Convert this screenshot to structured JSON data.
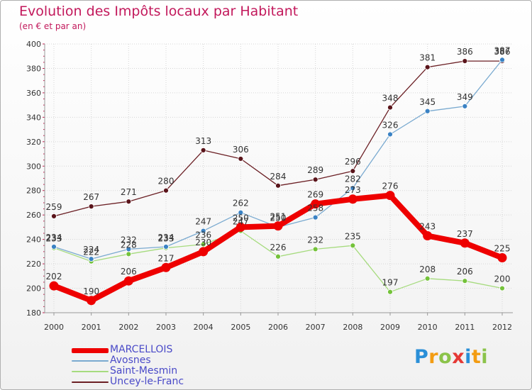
{
  "header": {
    "title": "Evolution des Impôts locaux par Habitant",
    "subtitle": "(en € et par an)"
  },
  "logo": {
    "letters": [
      "P",
      "r",
      "o",
      "x",
      "i",
      "t",
      "i"
    ],
    "colors": [
      "#2a8fd8",
      "#f39c12",
      "#8bc34a",
      "#e53935",
      "#2a8fd8",
      "#f39c12",
      "#8bc34a"
    ]
  },
  "chart_data": {
    "type": "line",
    "title": "Evolution des Impôts locaux par Habitant",
    "subtitle": "(en € et par an)",
    "xlabel": "",
    "ylabel": "",
    "x": [
      "2000",
      "2001",
      "2002",
      "2003",
      "2004",
      "2005",
      "2006",
      "2007",
      "2008",
      "2009",
      "2010",
      "2011",
      "2012"
    ],
    "ylim": [
      180,
      400
    ],
    "yticks": [
      180,
      200,
      220,
      240,
      260,
      280,
      300,
      320,
      340,
      360,
      380,
      400
    ],
    "grid": true,
    "legend_position": "bottom-left",
    "series": [
      {
        "name": "Uncey-le-Franc",
        "color": "#6b1f24",
        "marker": "#5a141a",
        "values": [
          259,
          267,
          271,
          280,
          313,
          306,
          284,
          289,
          296,
          348,
          381,
          386,
          386
        ]
      },
      {
        "name": "Saint-Mesmin",
        "color": "#a6db7e",
        "marker": "#74c23a",
        "values": [
          233,
          222,
          228,
          233,
          236,
          247,
          226,
          232,
          235,
          197,
          208,
          206,
          200
        ]
      },
      {
        "name": "Avosnes",
        "color": "#7aaad0",
        "marker": "#3a82c4",
        "values": [
          234,
          224,
          232,
          234,
          247,
          262,
          250,
          258,
          282,
          326,
          345,
          349,
          387
        ]
      },
      {
        "name": "MARCELLOIS",
        "color": "#ee0000",
        "marker": "#ee0000",
        "values": [
          202,
          190,
          206,
          217,
          230,
          250,
          251,
          269,
          273,
          276,
          243,
          237,
          225
        ]
      }
    ],
    "legend_order": [
      "MARCELLOIS",
      "Avosnes",
      "Saint-Mesmin",
      "Uncey-le-Franc"
    ]
  }
}
